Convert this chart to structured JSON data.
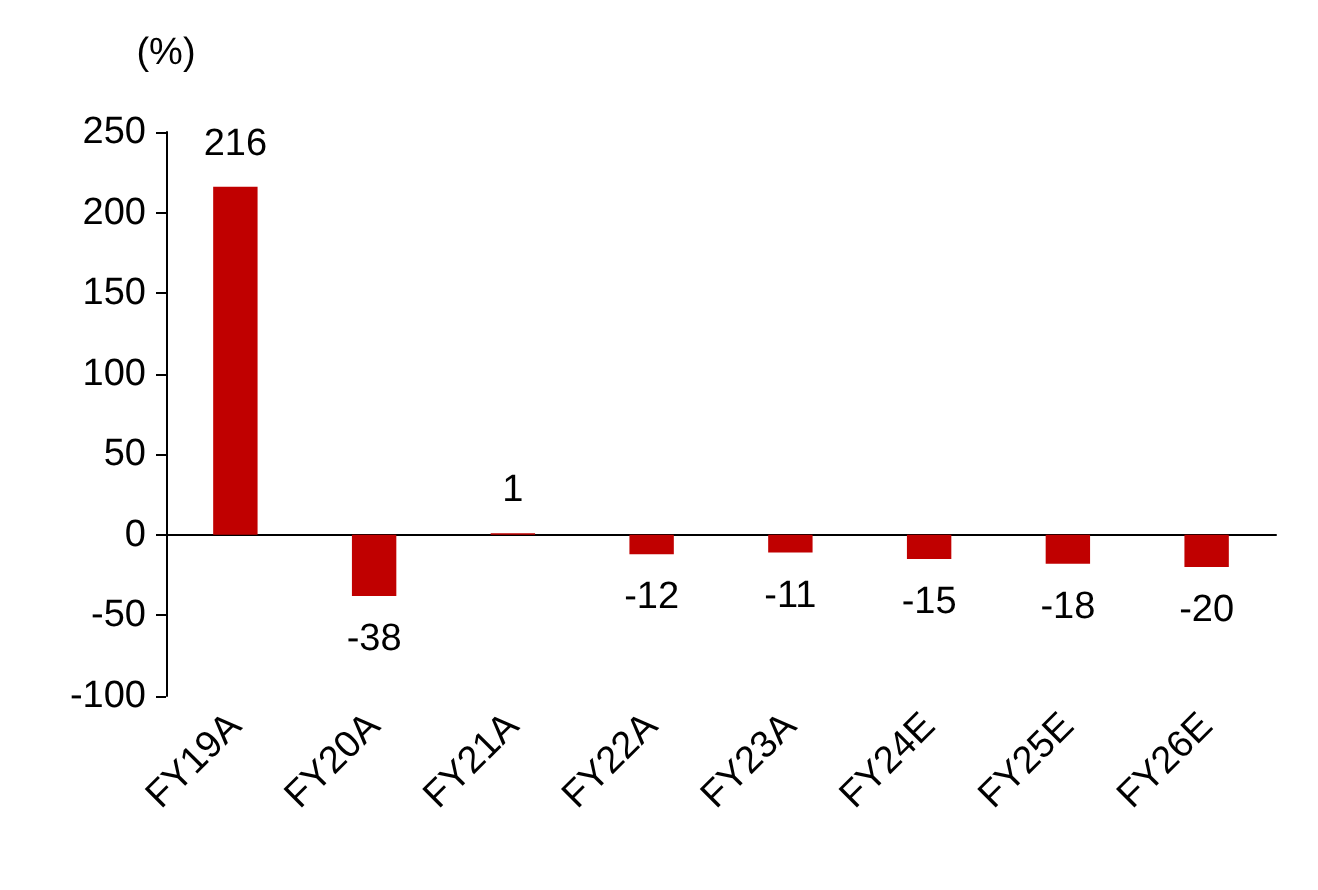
{
  "chart_data": {
    "type": "bar",
    "ylabel": "(%)",
    "categories": [
      "FY19A",
      "FY20A",
      "FY21A",
      "FY22A",
      "FY23A",
      "FY24E",
      "FY25E",
      "FY26E"
    ],
    "values": [
      216,
      -38,
      1,
      -12,
      -11,
      -15,
      -18,
      -20
    ],
    "color": "#c00000",
    "ylim": [
      -100,
      250
    ],
    "yticks": [
      -100,
      -50,
      0,
      50,
      100,
      150,
      200,
      250
    ],
    "data_labels": true
  }
}
